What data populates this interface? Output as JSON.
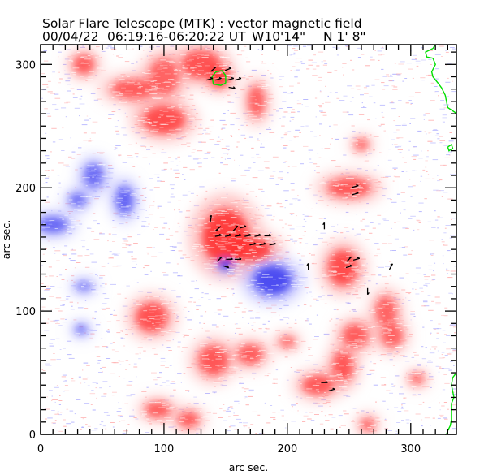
{
  "header": {
    "title": "Solar Flare Telescope (MTK) : vector magnetic field",
    "date": "00/04/22",
    "time_range": "06:19:16-06:20:22 UT",
    "position_w": "W10'14\"",
    "position_n": "N 1' 8\""
  },
  "chart_data": {
    "type": "heatmap",
    "title": "Solar Flare Telescope (MTK) : vector magnetic field",
    "subtitle": "00/04/22  06:19:16-06:20:22 UT    W10'14\"   N 1' 8\"",
    "xlabel": "arc sec.",
    "ylabel": "arc sec.",
    "xlim": [
      0,
      337
    ],
    "ylim": [
      0,
      316
    ],
    "x_ticks": [
      0,
      100,
      200,
      300
    ],
    "y_ticks": [
      0,
      100,
      200,
      300
    ],
    "x_tick_labels": [
      "0",
      "100",
      "200",
      "300"
    ],
    "y_tick_labels": [
      "0",
      "100",
      "200",
      "300"
    ],
    "minor_tick_step": 10,
    "grid": false,
    "colors": {
      "positive_strong": "#ff3030",
      "positive_weak": "#ffb0b0",
      "negative_strong": "#4040f0",
      "negative_weak": "#b0b0ff",
      "contour": "#00e000",
      "vector": "#000000"
    },
    "positive_regions": [
      {
        "x": 150,
        "y": 160,
        "rx": 22,
        "ry": 28,
        "strength": 1.0
      },
      {
        "x": 170,
        "y": 150,
        "rx": 20,
        "ry": 12,
        "strength": 0.95
      },
      {
        "x": 145,
        "y": 290,
        "rx": 10,
        "ry": 11,
        "strength": 1.0
      },
      {
        "x": 130,
        "y": 300,
        "rx": 18,
        "ry": 14,
        "strength": 0.7
      },
      {
        "x": 100,
        "y": 255,
        "rx": 20,
        "ry": 14,
        "strength": 0.8
      },
      {
        "x": 75,
        "y": 280,
        "rx": 20,
        "ry": 10,
        "strength": 0.6
      },
      {
        "x": 35,
        "y": 300,
        "rx": 10,
        "ry": 10,
        "strength": 0.6
      },
      {
        "x": 100,
        "y": 290,
        "rx": 14,
        "ry": 18,
        "strength": 0.5
      },
      {
        "x": 175,
        "y": 270,
        "rx": 8,
        "ry": 16,
        "strength": 0.55
      },
      {
        "x": 250,
        "y": 200,
        "rx": 20,
        "ry": 10,
        "strength": 0.65
      },
      {
        "x": 260,
        "y": 235,
        "rx": 7,
        "ry": 6,
        "strength": 0.5
      },
      {
        "x": 245,
        "y": 135,
        "rx": 14,
        "ry": 18,
        "strength": 0.8
      },
      {
        "x": 280,
        "y": 100,
        "rx": 10,
        "ry": 15,
        "strength": 0.5
      },
      {
        "x": 90,
        "y": 95,
        "rx": 15,
        "ry": 15,
        "strength": 0.75
      },
      {
        "x": 140,
        "y": 60,
        "rx": 14,
        "ry": 15,
        "strength": 0.65
      },
      {
        "x": 170,
        "y": 65,
        "rx": 12,
        "ry": 10,
        "strength": 0.6
      },
      {
        "x": 225,
        "y": 40,
        "rx": 15,
        "ry": 10,
        "strength": 0.65
      },
      {
        "x": 245,
        "y": 55,
        "rx": 10,
        "ry": 16,
        "strength": 0.65
      },
      {
        "x": 255,
        "y": 80,
        "rx": 12,
        "ry": 12,
        "strength": 0.6
      },
      {
        "x": 285,
        "y": 80,
        "rx": 10,
        "ry": 12,
        "strength": 0.55
      },
      {
        "x": 95,
        "y": 20,
        "rx": 12,
        "ry": 8,
        "strength": 0.6
      },
      {
        "x": 120,
        "y": 12,
        "rx": 10,
        "ry": 8,
        "strength": 0.6
      },
      {
        "x": 200,
        "y": 75,
        "rx": 8,
        "ry": 6,
        "strength": 0.45
      },
      {
        "x": 305,
        "y": 45,
        "rx": 7,
        "ry": 6,
        "strength": 0.4
      },
      {
        "x": 265,
        "y": 8,
        "rx": 7,
        "ry": 7,
        "strength": 0.45
      }
    ],
    "negative_regions": [
      {
        "x": 188,
        "y": 125,
        "rx": 18,
        "ry": 15,
        "strength": 1.0
      },
      {
        "x": 150,
        "y": 138,
        "rx": 7,
        "ry": 6,
        "strength": 1.0
      },
      {
        "x": 68,
        "y": 190,
        "rx": 8,
        "ry": 14,
        "strength": 0.7
      },
      {
        "x": 43,
        "y": 210,
        "rx": 9,
        "ry": 12,
        "strength": 0.55
      },
      {
        "x": 30,
        "y": 190,
        "rx": 8,
        "ry": 7,
        "strength": 0.55
      },
      {
        "x": 10,
        "y": 170,
        "rx": 14,
        "ry": 8,
        "strength": 0.6
      },
      {
        "x": 33,
        "y": 85,
        "rx": 6,
        "ry": 5,
        "strength": 0.5
      },
      {
        "x": 35,
        "y": 120,
        "rx": 8,
        "ry": 5,
        "strength": 0.35
      }
    ],
    "vectors": [
      {
        "x": 140,
        "y": 296,
        "angle": 40
      },
      {
        "x": 152,
        "y": 296,
        "angle": 20
      },
      {
        "x": 137,
        "y": 288,
        "angle": 15
      },
      {
        "x": 144,
        "y": 288,
        "angle": 15
      },
      {
        "x": 154,
        "y": 288,
        "angle": 15
      },
      {
        "x": 160,
        "y": 288,
        "angle": 15
      },
      {
        "x": 155,
        "y": 281,
        "angle": -10
      },
      {
        "x": 138,
        "y": 175,
        "angle": 80
      },
      {
        "x": 144,
        "y": 167,
        "angle": 220
      },
      {
        "x": 158,
        "y": 167,
        "angle": 45
      },
      {
        "x": 164,
        "y": 168,
        "angle": 15
      },
      {
        "x": 144,
        "y": 161,
        "angle": 10
      },
      {
        "x": 152,
        "y": 161,
        "angle": 10
      },
      {
        "x": 160,
        "y": 161,
        "angle": 10
      },
      {
        "x": 168,
        "y": 161,
        "angle": 10
      },
      {
        "x": 176,
        "y": 161,
        "angle": 10
      },
      {
        "x": 184,
        "y": 161,
        "angle": 0
      },
      {
        "x": 172,
        "y": 154,
        "angle": 10
      },
      {
        "x": 180,
        "y": 154,
        "angle": 10
      },
      {
        "x": 188,
        "y": 154,
        "angle": 10
      },
      {
        "x": 145,
        "y": 142,
        "angle": 45
      },
      {
        "x": 153,
        "y": 142,
        "angle": 0
      },
      {
        "x": 160,
        "y": 142,
        "angle": 0
      },
      {
        "x": 150,
        "y": 136,
        "angle": -20
      },
      {
        "x": 255,
        "y": 201,
        "angle": 15
      },
      {
        "x": 255,
        "y": 195,
        "angle": 15
      },
      {
        "x": 230,
        "y": 169,
        "angle": 90
      },
      {
        "x": 250,
        "y": 142,
        "angle": 45
      },
      {
        "x": 256,
        "y": 142,
        "angle": 15
      },
      {
        "x": 250,
        "y": 136,
        "angle": 15
      },
      {
        "x": 217,
        "y": 136,
        "angle": 90
      },
      {
        "x": 284,
        "y": 136,
        "angle": 60
      },
      {
        "x": 265,
        "y": 116,
        "angle": 270
      },
      {
        "x": 230,
        "y": 42,
        "angle": 0
      },
      {
        "x": 236,
        "y": 36,
        "angle": 15
      }
    ],
    "contours": [
      {
        "name": "sunspot-contour",
        "points": [
          [
            142,
            294
          ],
          [
            139,
            290
          ],
          [
            140,
            284
          ],
          [
            146,
            283
          ],
          [
            150,
            285
          ],
          [
            150,
            291
          ],
          [
            147,
            295
          ],
          [
            142,
            294
          ]
        ]
      },
      {
        "name": "limb-contour-top",
        "points": [
          [
            312,
            316
          ],
          [
            320,
            316
          ],
          [
            318,
            313
          ],
          [
            312,
            310
          ],
          [
            313,
            306
          ],
          [
            318,
            305
          ],
          [
            320,
            300
          ],
          [
            317,
            294
          ],
          [
            318,
            290
          ],
          [
            322,
            285
          ],
          [
            325,
            281
          ],
          [
            328,
            275
          ],
          [
            329,
            270
          ],
          [
            330,
            265
          ],
          [
            333,
            263
          ],
          [
            336,
            261
          ],
          [
            337,
            260
          ]
        ]
      },
      {
        "name": "limb-contour-loop",
        "points": [
          [
            330,
            233
          ],
          [
            333,
            235
          ],
          [
            334,
            232
          ],
          [
            331,
            230
          ],
          [
            330,
            233
          ]
        ]
      },
      {
        "name": "limb-contour-bottom",
        "points": [
          [
            337,
            50
          ],
          [
            334,
            46
          ],
          [
            333,
            40
          ],
          [
            334,
            35
          ],
          [
            335,
            30
          ],
          [
            333,
            25
          ],
          [
            333,
            18
          ],
          [
            333,
            12
          ],
          [
            332,
            7
          ],
          [
            330,
            3
          ],
          [
            329,
            0
          ]
        ]
      }
    ]
  }
}
